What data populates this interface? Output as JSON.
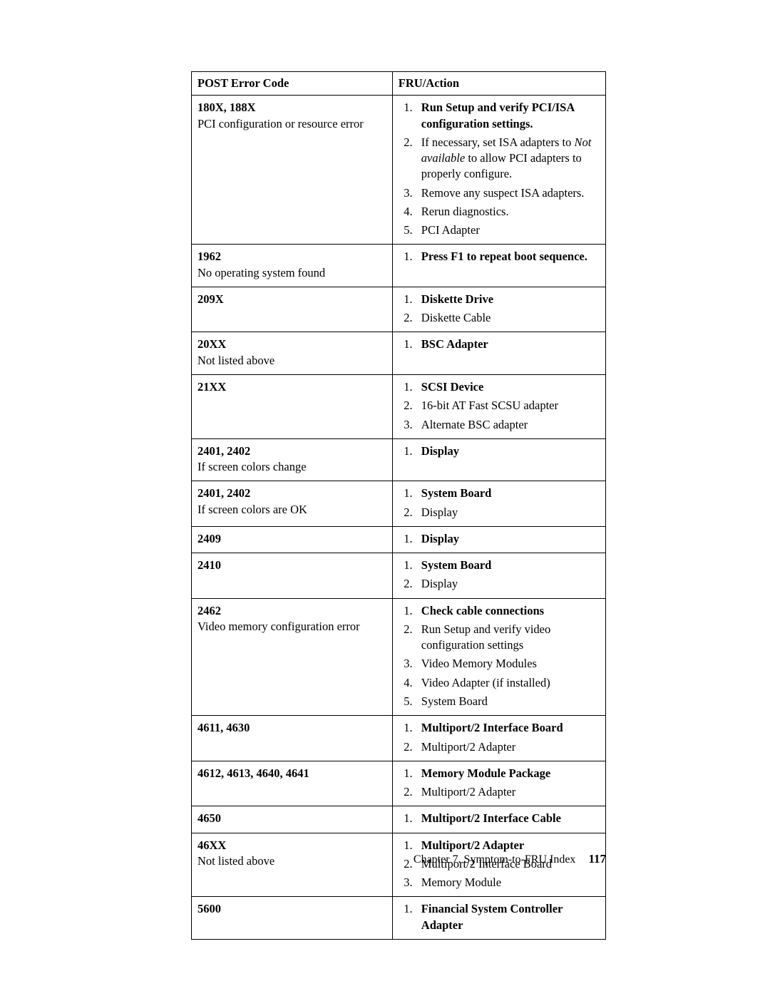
{
  "table": {
    "header_left": "POST Error Code",
    "header_right": "FRU/Action",
    "rows": [
      {
        "code": "180X, 188X",
        "desc": "PCI configuration or resource error",
        "actions": [
          {
            "segments": [
              {
                "text": "Run Setup and verify PCI/ISA configuration settings.",
                "bold": true
              }
            ]
          },
          {
            "segments": [
              {
                "text": "If necessary, set ISA adapters to "
              },
              {
                "text": "Not available",
                "italic": true
              },
              {
                "text": " to allow PCI adapters to properly configure."
              }
            ]
          },
          {
            "segments": [
              {
                "text": "Remove any suspect ISA adapters."
              }
            ]
          },
          {
            "segments": [
              {
                "text": "Rerun diagnostics."
              }
            ]
          },
          {
            "segments": [
              {
                "text": "PCI Adapter"
              }
            ]
          }
        ]
      },
      {
        "code": "1962",
        "desc": "No operating system found",
        "actions": [
          {
            "segments": [
              {
                "text": "Press F1 to repeat boot sequence.",
                "bold": true
              }
            ]
          }
        ]
      },
      {
        "code": "209X",
        "desc": "",
        "actions": [
          {
            "segments": [
              {
                "text": "Diskette Drive",
                "bold": true
              }
            ]
          },
          {
            "segments": [
              {
                "text": "Diskette Cable"
              }
            ]
          }
        ]
      },
      {
        "code": "20XX",
        "desc": "Not listed above",
        "actions": [
          {
            "segments": [
              {
                "text": "BSC Adapter",
                "bold": true
              }
            ]
          }
        ]
      },
      {
        "code": "21XX",
        "desc": "",
        "actions": [
          {
            "segments": [
              {
                "text": "SCSI Device",
                "bold": true
              }
            ]
          },
          {
            "segments": [
              {
                "text": "16-bit AT Fast SCSU adapter"
              }
            ]
          },
          {
            "segments": [
              {
                "text": "Alternate BSC adapter"
              }
            ]
          }
        ]
      },
      {
        "code": "2401, 2402",
        "desc": "If screen colors change",
        "actions": [
          {
            "segments": [
              {
                "text": "Display",
                "bold": true
              }
            ]
          }
        ]
      },
      {
        "code": "2401, 2402",
        "desc": "If screen colors are OK",
        "actions": [
          {
            "segments": [
              {
                "text": "System Board",
                "bold": true
              }
            ]
          },
          {
            "segments": [
              {
                "text": "Display"
              }
            ]
          }
        ]
      },
      {
        "code": "2409",
        "desc": "",
        "actions": [
          {
            "segments": [
              {
                "text": "Display",
                "bold": true
              }
            ]
          }
        ]
      },
      {
        "code": "2410",
        "desc": "",
        "actions": [
          {
            "segments": [
              {
                "text": "System Board",
                "bold": true
              }
            ]
          },
          {
            "segments": [
              {
                "text": "Display"
              }
            ]
          }
        ]
      },
      {
        "code": "2462",
        "desc": "Video memory configuration error",
        "actions": [
          {
            "segments": [
              {
                "text": "Check cable connections",
                "bold": true
              }
            ]
          },
          {
            "segments": [
              {
                "text": "Run Setup and verify video configuration settings"
              }
            ]
          },
          {
            "segments": [
              {
                "text": "Video Memory Modules"
              }
            ]
          },
          {
            "segments": [
              {
                "text": "Video Adapter (if installed)"
              }
            ]
          },
          {
            "segments": [
              {
                "text": "System Board"
              }
            ]
          }
        ]
      },
      {
        "code": "4611, 4630",
        "desc": "",
        "actions": [
          {
            "segments": [
              {
                "text": "Multiport/2 Interface Board",
                "bold": true
              }
            ]
          },
          {
            "segments": [
              {
                "text": "Multiport/2 Adapter"
              }
            ]
          }
        ]
      },
      {
        "code": "4612, 4613, 4640, 4641",
        "desc": "",
        "actions": [
          {
            "segments": [
              {
                "text": "Memory Module Package",
                "bold": true
              }
            ]
          },
          {
            "segments": [
              {
                "text": "Multiport/2 Adapter"
              }
            ]
          }
        ]
      },
      {
        "code": "4650",
        "desc": "",
        "actions": [
          {
            "segments": [
              {
                "text": "Multiport/2 Interface Cable",
                "bold": true
              }
            ]
          }
        ]
      },
      {
        "code": "46XX",
        "desc": "Not listed above",
        "actions": [
          {
            "segments": [
              {
                "text": "Multiport/2 Adapter",
                "bold": true
              }
            ]
          },
          {
            "segments": [
              {
                "text": "Multiport/2 Interface Board"
              }
            ]
          },
          {
            "segments": [
              {
                "text": "Memory Module"
              }
            ]
          }
        ]
      },
      {
        "code": "5600",
        "desc": "",
        "actions": [
          {
            "segments": [
              {
                "text": "Financial System Controller Adapter",
                "bold": true
              }
            ]
          }
        ]
      }
    ]
  },
  "footer": {
    "chapter_label": "Chapter 7. Symptom-to-FRU Index",
    "page_number": "117"
  },
  "style": {
    "background_color": "#ffffff",
    "text_color": "#000000",
    "border_color": "#000000",
    "font_family": "Palatino, serif",
    "base_fontsize_pt": 12,
    "code_font_weight": "bold"
  }
}
